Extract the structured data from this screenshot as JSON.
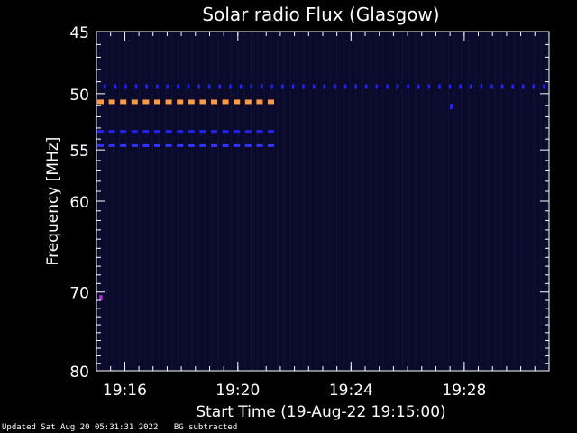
{
  "chart_data": {
    "type": "heatmap",
    "title": "Solar radio Flux (Glasgow)",
    "xlabel": "Start Time (19-Aug-22 19:15:00)",
    "ylabel": "Frequency [MHz]",
    "x_range_minutes": [
      19.25,
      19.5167
    ],
    "x_ticks": [
      "19:16",
      "19:20",
      "19:24",
      "19:28"
    ],
    "x_tick_hours": [
      19.2667,
      19.3333,
      19.4,
      19.4667
    ],
    "y_scale": "log",
    "ylim": [
      45,
      80
    ],
    "y_ticks": [
      45,
      50,
      55,
      60,
      70,
      80
    ],
    "background_color": "#000000",
    "plot_bg_color": "#0a0a2a",
    "features": [
      {
        "freq_mhz": 49.4,
        "t_start": 19.25,
        "t_end": 19.5167,
        "color": "#2222ff",
        "style": "dots"
      },
      {
        "freq_mhz": 50.7,
        "t_start": 19.25,
        "t_end": 19.3533,
        "color": "#ff9944",
        "style": "dashes"
      },
      {
        "freq_mhz": 53.3,
        "t_start": 19.25,
        "t_end": 19.3533,
        "color": "#2222ee",
        "style": "dashes"
      },
      {
        "freq_mhz": 54.6,
        "t_start": 19.25,
        "t_end": 19.3533,
        "color": "#3333ff",
        "style": "dashes"
      },
      {
        "freq_mhz": 70.7,
        "t_start": 19.2517,
        "t_end": 19.2533,
        "color": "#aa33cc",
        "style": "dot"
      },
      {
        "freq_mhz": 51.1,
        "t_start": 19.4583,
        "t_end": 19.46,
        "color": "#2222ff",
        "style": "dot"
      }
    ]
  },
  "footer": {
    "updated": "Updated Sat Aug 20 05:31:31 2022",
    "note": "BG subtracted"
  }
}
